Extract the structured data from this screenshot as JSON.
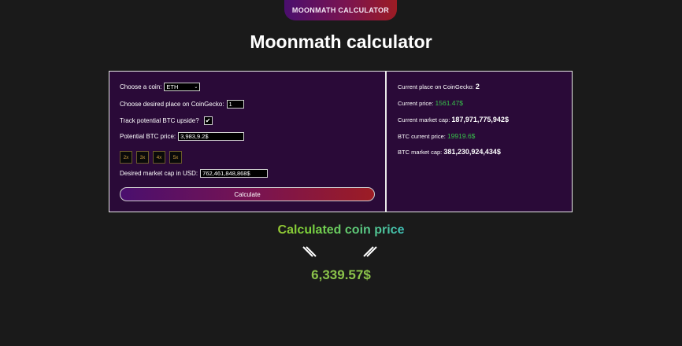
{
  "top_tab": {
    "label": "MOONMATH CALCULATOR"
  },
  "page": {
    "title": "Moonmath calculator"
  },
  "form": {
    "coin_label": "Choose a coin:",
    "coin_value": "ETH",
    "place_label": "Choose desired place on CoinGecko:",
    "place_value": "1",
    "track_label": "Track potential BTC upside?",
    "track_checked": "✔",
    "btc_price_label": "Potential BTC price:",
    "btc_price_value": "3,983,9.2$",
    "multipliers": [
      "2x",
      "3x",
      "4x",
      "5x"
    ],
    "market_cap_label": "Desired market cap in USD:",
    "market_cap_value": "762,461,848,868$",
    "calculate_label": "Calculate"
  },
  "info": {
    "current_place_label": "Current place on CoinGecko:",
    "current_place_value": "2",
    "current_price_label": "Current price:",
    "current_price_value": "1561.47$",
    "current_mcap_label": "Current market cap:",
    "current_mcap_value": "187,971,775,942$",
    "btc_price_label": "BTC current price:",
    "btc_price_value": "19919.6$",
    "btc_mcap_label": "BTC market cap:",
    "btc_mcap_value": "381,230,924,434$"
  },
  "result": {
    "title": "Calculated coin price",
    "value": "6,339.57$"
  },
  "colors": {
    "background": "#1a1a1a",
    "panel": "#2a0a38",
    "accent_start": "#4a0f6e",
    "accent_end": "#9c1c24",
    "green": "#37c24a",
    "result_green": "#8bc34a",
    "multiplier_text": "#c89b3c"
  }
}
